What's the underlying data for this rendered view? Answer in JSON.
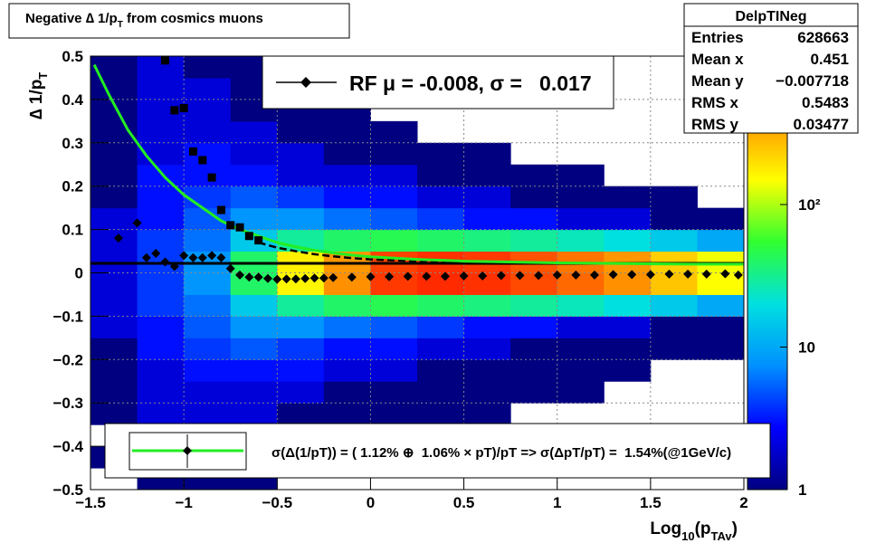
{
  "chart_data": {
    "type": "heatmap",
    "title_parts": [
      "Negative ∆ 1/p",
      "T",
      " from cosmics muons"
    ],
    "ylabel_parts": [
      "∆ 1/p",
      "T"
    ],
    "xlabel_parts": [
      "Log",
      "10",
      "(p",
      "TAv",
      ")"
    ],
    "xlim": [
      -1.5,
      2
    ],
    "xticks": [
      {
        "value": -1.5,
        "label": "−1.5"
      },
      {
        "value": -1,
        "label": "−1"
      },
      {
        "value": -0.5,
        "label": "−0.5"
      },
      0,
      0.5,
      1,
      1.5,
      2
    ],
    "ylim": [
      -0.5,
      0.5
    ],
    "yticks": [
      {
        "value": -0.5,
        "label": "−0.5"
      },
      {
        "value": -0.4,
        "label": "−0.4"
      },
      {
        "value": -0.3,
        "label": "−0.3"
      },
      {
        "value": -0.2,
        "label": "−0.2"
      },
      {
        "value": -0.1,
        "label": "−0.1"
      },
      0,
      0.1,
      0.2,
      0.3,
      0.4,
      0.5
    ],
    "grid": true,
    "zlim": [
      1,
      1100
    ],
    "zlog": true,
    "zticks": [
      1,
      10,
      {
        "value": 100,
        "label": "10²"
      }
    ],
    "palette": [
      "#000080",
      "#0000ff",
      "#0090ff",
      "#00e0e0",
      "#30ff30",
      "#ffff00",
      "#ff9000",
      "#ff1000"
    ],
    "xbins": [
      -1.5,
      -1.25,
      -1,
      -0.75,
      -0.5,
      -0.25,
      0,
      0.25,
      0.5,
      0.75,
      1,
      1.25,
      1.5,
      1.75,
      2
    ],
    "ybins": [
      -0.5,
      -0.45,
      -0.4,
      -0.35,
      -0.3,
      -0.25,
      -0.2,
      -0.15,
      -0.1,
      -0.05,
      0,
      0.05,
      0.1,
      0.15,
      0.2,
      0.25,
      0.3,
      0.35,
      0.4,
      0.45,
      0.5
    ],
    "z": [
      [
        0,
        1,
        0,
        1,
        1,
        1,
        1,
        2,
        2,
        2,
        2,
        2,
        2,
        1,
        1,
        1,
        1,
        1,
        1,
        1
      ],
      [
        1,
        1,
        1,
        2,
        2,
        2,
        3,
        3,
        4,
        4,
        4,
        4,
        3,
        3,
        3,
        2,
        2,
        2,
        2,
        2
      ],
      [
        1,
        1,
        2,
        2,
        2,
        3,
        4,
        5,
        6,
        8,
        8,
        6,
        5,
        4,
        3,
        3,
        2,
        2,
        2,
        1
      ],
      [
        1,
        1,
        1,
        2,
        2,
        3,
        5,
        8,
        15,
        40,
        40,
        15,
        8,
        5,
        3,
        2,
        2,
        1,
        1,
        1
      ],
      [
        0,
        1,
        1,
        1,
        2,
        3,
        4,
        8,
        30,
        160,
        170,
        30,
        8,
        4,
        2,
        2,
        1,
        1,
        1,
        0
      ],
      [
        0,
        0,
        1,
        1,
        1,
        2,
        3,
        6,
        40,
        400,
        380,
        40,
        6,
        3,
        2,
        1,
        1,
        1,
        0,
        0
      ],
      [
        0,
        0,
        1,
        1,
        1,
        2,
        3,
        5,
        45,
        800,
        750,
        45,
        5,
        3,
        2,
        1,
        1,
        0,
        0,
        0
      ],
      [
        0,
        0,
        0,
        1,
        1,
        1,
        2,
        4,
        40,
        900,
        850,
        40,
        4,
        2,
        1,
        1,
        0,
        0,
        0,
        0
      ],
      [
        0,
        0,
        0,
        1,
        1,
        1,
        2,
        3,
        35,
        850,
        800,
        35,
        3,
        2,
        1,
        1,
        0,
        0,
        0,
        0
      ],
      [
        0,
        0,
        0,
        0,
        1,
        1,
        1,
        3,
        30,
        700,
        650,
        30,
        3,
        1,
        1,
        0,
        0,
        0,
        0,
        0
      ],
      [
        0,
        0,
        0,
        0,
        1,
        1,
        1,
        2,
        25,
        550,
        500,
        25,
        2,
        1,
        1,
        0,
        0,
        0,
        0,
        0
      ],
      [
        0,
        0,
        0,
        0,
        0,
        1,
        1,
        2,
        20,
        400,
        380,
        20,
        2,
        1,
        0,
        0,
        0,
        0,
        0,
        0
      ],
      [
        0,
        0,
        0,
        0,
        0,
        0,
        1,
        1,
        15,
        250,
        230,
        15,
        1,
        1,
        0,
        0,
        0,
        0,
        0,
        0
      ],
      [
        0,
        0,
        0,
        0,
        0,
        0,
        1,
        1,
        10,
        150,
        140,
        10,
        1,
        0,
        0,
        0,
        0,
        0,
        0,
        0
      ]
    ],
    "series": [
      {
        "style": "line",
        "color": "#000000",
        "x": [
          -1.5,
          2
        ],
        "values": [
          0.022,
          0.022
        ]
      },
      {
        "style": "dashed",
        "color": "#000000",
        "x": [
          -0.6,
          -0.5,
          -0.4,
          -0.3,
          -0.2,
          -0.1,
          0,
          0.25,
          0.5,
          0.75,
          1,
          1.5,
          2
        ],
        "values": [
          0.07,
          0.058,
          0.05,
          0.043,
          0.038,
          0.034,
          0.031,
          0.027,
          0.025,
          0.024,
          0.023,
          0.021,
          0.02
        ]
      },
      {
        "style": "line",
        "color": "#22ee22",
        "x": [
          -1.48,
          -1.4,
          -1.3,
          -1.2,
          -1.1,
          -1,
          -0.9,
          -0.8,
          -0.7,
          -0.6,
          -0.5,
          -0.4,
          -0.3,
          -0.2,
          -0.1,
          0,
          0.25,
          0.5,
          0.75,
          1,
          1.25,
          1.5,
          1.75,
          2
        ],
        "values": [
          0.48,
          0.41,
          0.33,
          0.27,
          0.22,
          0.18,
          0.15,
          0.12,
          0.1,
          0.085,
          0.07,
          0.06,
          0.052,
          0.046,
          0.041,
          0.037,
          0.031,
          0.027,
          0.025,
          0.023,
          0.022,
          0.021,
          0.02,
          0.02
        ]
      },
      {
        "style": "square",
        "color": "#000000",
        "x": [
          -1.1,
          -1.05,
          -1,
          -0.95,
          -0.9,
          -0.85,
          -0.8,
          -0.75,
          -0.7,
          -0.65,
          -0.6
        ],
        "values": [
          0.49,
          0.375,
          0.38,
          0.28,
          0.26,
          0.22,
          0.145,
          0.11,
          0.105,
          0.085,
          0.075
        ]
      },
      {
        "style": "diamond",
        "color": "#000000",
        "x": [
          -1.35,
          -1.25,
          -1.2,
          -1.15,
          -1.1,
          -1.05,
          -1,
          -0.95,
          -0.9,
          -0.85,
          -0.8,
          -0.75,
          -0.7,
          -0.65,
          -0.6,
          -0.55,
          -0.5,
          -0.45,
          -0.4,
          -0.35,
          -0.3,
          -0.25,
          -0.2,
          -0.1,
          0,
          0.1,
          0.2,
          0.3,
          0.4,
          0.5,
          0.6,
          0.7,
          0.8,
          0.9,
          1,
          1.1,
          1.2,
          1.3,
          1.4,
          1.5,
          1.6,
          1.7,
          1.8,
          1.9,
          1.97
        ],
        "values": [
          0.08,
          0.115,
          0.035,
          0.045,
          0.025,
          0.015,
          0.04,
          0.035,
          0.035,
          0.04,
          0.035,
          0.01,
          -0.005,
          -0.01,
          -0.01,
          -0.013,
          -0.015,
          -0.014,
          -0.014,
          -0.013,
          -0.012,
          -0.012,
          -0.011,
          -0.01,
          -0.009,
          -0.009,
          -0.008,
          -0.008,
          -0.008,
          -0.007,
          -0.007,
          -0.006,
          -0.006,
          -0.006,
          -0.005,
          -0.005,
          -0.005,
          -0.004,
          -0.004,
          -0.004,
          -0.003,
          -0.003,
          -0.003,
          -0.002,
          -0.005
        ]
      }
    ],
    "stats": {
      "name": "DelpTINeg",
      "rows": [
        {
          "label": "Entries",
          "value": 628663
        },
        {
          "label": "Mean x",
          "value": 0.451
        },
        {
          "label": "Mean y",
          "value": {
            "value": -0.007718,
            "label": "−0.007718"
          }
        },
        {
          "label": "RMS x",
          "value": 0.5483
        },
        {
          "label": "RMS y",
          "value": 0.03477
        }
      ]
    },
    "legend_top": "RF μ = -0.008, σ =   0.017",
    "legend_bottom": "σ(Δ(1/pT)) = ( 1.12% ⊕  1.06% × pT)/pT => σ(ΔpT/pT) =  1.54%(@1GeV/c)"
  }
}
